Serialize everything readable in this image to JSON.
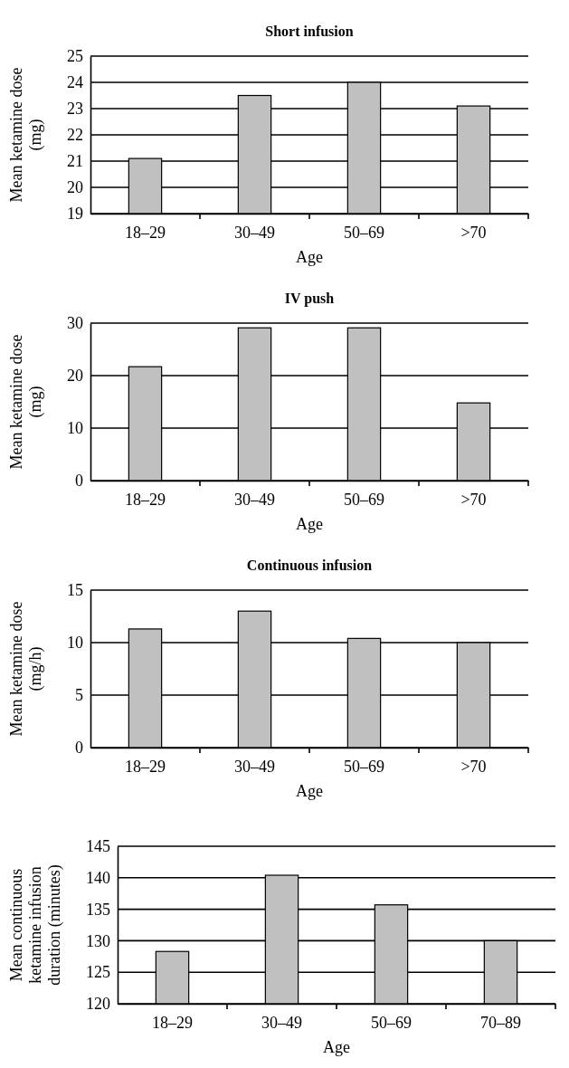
{
  "chart_data": [
    {
      "type": "bar",
      "title": "Short infusion",
      "xlabel": "Age",
      "ylabel": "Mean ketamine dose (mg)",
      "categories": [
        "18–29",
        "30–49",
        "50–69",
        ">70"
      ],
      "values": [
        21.1,
        23.5,
        24.0,
        23.1
      ],
      "color": "#c0c0c0",
      "ylim": [
        19,
        25
      ],
      "yticks": [
        19,
        20,
        21,
        22,
        23,
        24,
        25
      ],
      "grid": "y"
    },
    {
      "type": "bar",
      "title": "IV push",
      "xlabel": "Age",
      "ylabel": "Mean ketamine dose (mg)",
      "categories": [
        "18–29",
        "30–49",
        "50–69",
        ">70"
      ],
      "values": [
        21.7,
        29.1,
        29.1,
        14.8
      ],
      "color": "#c0c0c0",
      "ylim": [
        0,
        30
      ],
      "yticks": [
        0,
        10,
        20,
        30
      ],
      "grid": "y"
    },
    {
      "type": "bar",
      "title": "Continuous infusion",
      "xlabel": "Age",
      "ylabel": "Mean ketamine dose (mg/h)",
      "categories": [
        "18–29",
        "30–49",
        "50–69",
        ">70"
      ],
      "values": [
        11.3,
        13.0,
        10.4,
        10.0
      ],
      "color": "#c0c0c0",
      "ylim": [
        0,
        15
      ],
      "yticks": [
        0,
        5,
        10,
        15
      ],
      "grid": "y"
    },
    {
      "type": "bar",
      "xlabel": "Age",
      "ylabel": "Mean continuous ketamine infusion duration (minutes)",
      "categories": [
        "18–29",
        "30–49",
        "50–69",
        "70–89"
      ],
      "values": [
        128.3,
        140.4,
        135.7,
        130.0
      ],
      "color": "#c0c0c0",
      "ylim": [
        120,
        145
      ],
      "yticks": [
        120,
        125,
        130,
        135,
        140,
        145
      ],
      "grid": "y"
    }
  ]
}
